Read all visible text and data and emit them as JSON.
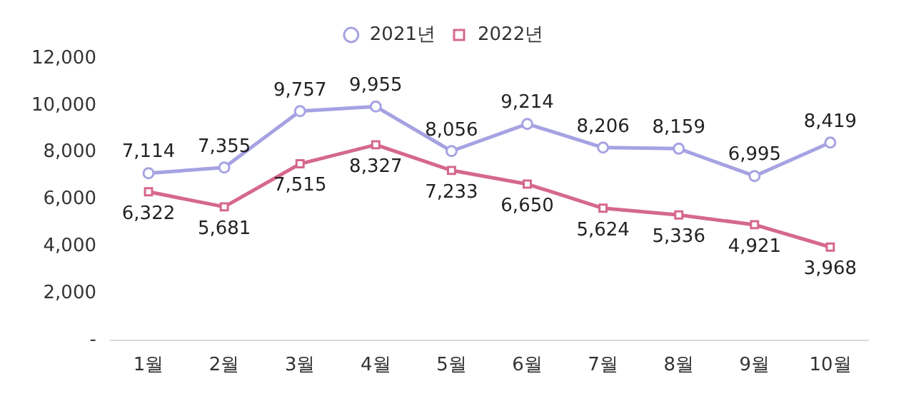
{
  "chart_data": {
    "type": "line",
    "categories": [
      "1월",
      "2월",
      "3월",
      "4월",
      "5월",
      "6월",
      "7월",
      "8월",
      "9월",
      "10월"
    ],
    "series": [
      {
        "name": "2021년",
        "color": "#a6a2e2",
        "marker": "circle",
        "values": [
          7114,
          7355,
          9757,
          9955,
          8056,
          9214,
          8206,
          8159,
          6995,
          8419
        ],
        "value_labels": [
          "7,114",
          "7,355",
          "9,757",
          "9,955",
          "8,056",
          "9,214",
          "8,206",
          "8,159",
          "6,995",
          "8,419"
        ]
      },
      {
        "name": "2022년",
        "color": "#d5688c",
        "marker": "square",
        "values": [
          6322,
          5681,
          7515,
          8327,
          7233,
          6650,
          5624,
          5336,
          4921,
          3968
        ],
        "value_labels": [
          "6,322",
          "5,681",
          "7,515",
          "8,327",
          "7,233",
          "6,650",
          "5,624",
          "5,336",
          "4,921",
          "3,968"
        ]
      }
    ],
    "ylim": [
      0,
      12000
    ],
    "yticks": [
      {
        "value": 0,
        "label": "-"
      },
      {
        "value": 2000,
        "label": "2,000"
      },
      {
        "value": 4000,
        "label": "4,000"
      },
      {
        "value": 6000,
        "label": "6,000"
      },
      {
        "value": 8000,
        "label": "8,000"
      },
      {
        "value": 10000,
        "label": "10,000"
      },
      {
        "value": 12000,
        "label": "12,000"
      }
    ],
    "legend": "top",
    "grid": false
  }
}
